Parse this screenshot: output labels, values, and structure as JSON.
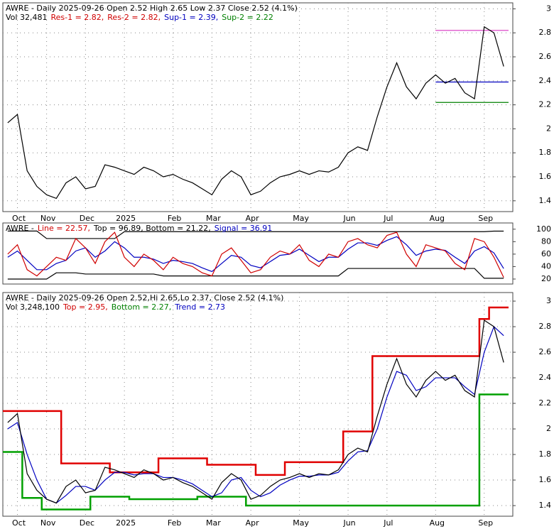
{
  "chart_data": [
    {
      "type": "line",
      "header": [
        [
          {
            "text": "AWRE - Daily 2025-09-26 Open 2.52  High 2.65  Low 2.37  Close 2.52 (4.1%)",
            "color": "#000000"
          }
        ],
        [
          {
            "text": "Vol 32,481",
            "color": "#000000"
          },
          {
            "text": "Res-1 = 2.82,",
            "color": "#d00000"
          },
          {
            "text": "Res-2 = 2.82,",
            "color": "#d00000"
          },
          {
            "text": "Sup-1 = 2.39,",
            "color": "#0000c0"
          },
          {
            "text": "Sup-2 = 2.22",
            "color": "#008000"
          }
        ]
      ],
      "categories": [
        null,
        "Oct",
        null,
        null,
        "Nov",
        null,
        null,
        null,
        "Dec",
        null,
        null,
        null,
        "2025",
        null,
        null,
        null,
        null,
        "Feb",
        null,
        null,
        null,
        "Mar",
        null,
        null,
        null,
        "Apr",
        null,
        null,
        null,
        null,
        "May",
        null,
        null,
        null,
        null,
        "Jun",
        null,
        null,
        null,
        "Jul",
        null,
        null,
        null,
        null,
        "Aug",
        null,
        null,
        null,
        null,
        "Sep",
        null,
        null
      ],
      "series": [
        {
          "color": "#000000",
          "values": [
            2.05,
            2.12,
            1.65,
            1.52,
            1.45,
            1.42,
            1.55,
            1.6,
            1.5,
            1.52,
            1.7,
            1.68,
            1.65,
            1.62,
            1.68,
            1.65,
            1.6,
            1.62,
            1.58,
            1.55,
            1.5,
            1.45,
            1.58,
            1.65,
            1.6,
            1.45,
            1.48,
            1.55,
            1.6,
            1.62,
            1.65,
            1.62,
            1.65,
            1.64,
            1.68,
            1.8,
            1.85,
            1.82,
            2.1,
            2.35,
            2.55,
            2.35,
            2.25,
            2.38,
            2.45,
            2.38,
            2.42,
            2.3,
            2.25,
            2.85,
            2.8,
            2.52
          ]
        }
      ],
      "levels": [
        {
          "value": 2.82,
          "color": "#d00000"
        },
        {
          "value": 2.82,
          "color": "#e060e0"
        },
        {
          "value": 2.39,
          "color": "#0000c0"
        },
        {
          "value": 2.22,
          "color": "#008000"
        }
      ],
      "ylim": [
        1.31,
        3.05
      ],
      "yticks": [
        1.4,
        1.6,
        1.8,
        2.0,
        2.2,
        2.4,
        2.6,
        2.8,
        3.0
      ],
      "grid": true
    },
    {
      "type": "line",
      "header": [
        [
          {
            "text": "AWRE -",
            "color": "#000000"
          },
          {
            "text": "Line = 22.57,",
            "color": "#d00000"
          },
          {
            "text": "Top = 96.89, Bottom = 21.22,",
            "color": "#000000"
          },
          {
            "text": "Signal = 36.91",
            "color": "#0000c0"
          }
        ]
      ],
      "series": [
        {
          "color": "#000000",
          "values": [
            97,
            97,
            97,
            97,
            85,
            85,
            85,
            85,
            85,
            85,
            85,
            85,
            96,
            96,
            96,
            96,
            96,
            96,
            96,
            96,
            96,
            96,
            96,
            96,
            96,
            96,
            96,
            96,
            96,
            96,
            96,
            96,
            96,
            96,
            96,
            96,
            96,
            96,
            96,
            96,
            96,
            96,
            96,
            96,
            96,
            96,
            96,
            96,
            96,
            96,
            96.89,
            96.89
          ]
        },
        {
          "color": "#000000",
          "values": [
            20,
            20,
            20,
            20,
            20,
            30,
            30,
            30,
            28,
            28,
            28,
            28,
            28,
            28,
            28,
            28,
            25,
            25,
            25,
            25,
            25,
            25,
            25,
            25,
            25,
            25,
            25,
            25,
            25,
            25,
            25,
            25,
            25,
            25,
            25,
            37,
            37,
            37,
            37,
            37,
            37,
            37,
            37,
            37,
            37,
            37,
            37,
            37,
            37,
            21.22,
            21.22,
            21.22
          ]
        },
        {
          "color": "#0000c0",
          "values": [
            55,
            65,
            50,
            35,
            35,
            45,
            50,
            65,
            70,
            55,
            65,
            80,
            70,
            55,
            55,
            52,
            45,
            50,
            48,
            45,
            38,
            32,
            45,
            58,
            55,
            42,
            38,
            48,
            58,
            60,
            68,
            58,
            48,
            55,
            55,
            68,
            78,
            78,
            74,
            82,
            88,
            75,
            58,
            65,
            68,
            66,
            55,
            45,
            65,
            72,
            62,
            36.91
          ]
        },
        {
          "color": "#d00000",
          "values": [
            60,
            75,
            35,
            25,
            40,
            55,
            50,
            85,
            70,
            45,
            80,
            95,
            55,
            40,
            60,
            50,
            35,
            55,
            45,
            40,
            30,
            25,
            60,
            70,
            50,
            30,
            35,
            55,
            65,
            60,
            75,
            50,
            40,
            60,
            55,
            80,
            85,
            75,
            70,
            90,
            95,
            60,
            40,
            75,
            70,
            65,
            45,
            35,
            85,
            80,
            55,
            22.57
          ]
        }
      ],
      "ylim": [
        12,
        110
      ],
      "yticks": [
        20,
        40,
        60,
        80,
        100
      ],
      "grid": false
    },
    {
      "type": "line",
      "header": [
        [
          {
            "text": "AWRE - Daily 2025-09-26 Open 2.52,Hi 2.65,Lo 2.37, Close 2.52 (4.1%)",
            "color": "#000000"
          }
        ],
        [
          {
            "text": "Vol 3,248,100",
            "color": "#000000"
          },
          {
            "text": "Top = 2.95,",
            "color": "#d00000"
          },
          {
            "text": "Bottom = 2.27,",
            "color": "#008000"
          },
          {
            "text": "Trend = 2.73",
            "color": "#0000c0"
          }
        ]
      ],
      "categories": [
        null,
        "Oct",
        null,
        null,
        "Nov",
        null,
        null,
        null,
        "Dec",
        null,
        null,
        null,
        "2025",
        null,
        null,
        null,
        null,
        "Feb",
        null,
        null,
        null,
        "Mar",
        null,
        null,
        null,
        "Apr",
        null,
        null,
        null,
        null,
        "May",
        null,
        null,
        null,
        null,
        "Jun",
        null,
        null,
        null,
        "Jul",
        null,
        null,
        null,
        null,
        "Aug",
        null,
        null,
        null,
        null,
        "Sep",
        null,
        null
      ],
      "series": [
        {
          "color": "#e00000",
          "step": true,
          "values": [
            2.14,
            2.14,
            2.14,
            2.14,
            2.14,
            2.14,
            1.73,
            1.73,
            1.73,
            1.73,
            1.73,
            1.66,
            1.66,
            1.66,
            1.66,
            1.66,
            1.77,
            1.77,
            1.77,
            1.77,
            1.77,
            1.72,
            1.72,
            1.72,
            1.72,
            1.72,
            1.64,
            1.64,
            1.64,
            1.74,
            1.74,
            1.74,
            1.74,
            1.74,
            1.74,
            1.98,
            1.98,
            1.98,
            2.57,
            2.57,
            2.57,
            2.57,
            2.57,
            2.57,
            2.57,
            2.57,
            2.57,
            2.57,
            2.57,
            2.86,
            2.95,
            2.95
          ]
        },
        {
          "color": "#00a000",
          "step": true,
          "values": [
            1.82,
            1.82,
            1.46,
            1.46,
            1.37,
            1.37,
            1.37,
            1.37,
            1.37,
            1.47,
            1.47,
            1.47,
            1.47,
            1.45,
            1.45,
            1.45,
            1.45,
            1.45,
            1.45,
            1.45,
            1.47,
            1.47,
            1.47,
            1.47,
            1.47,
            1.4,
            1.4,
            1.4,
            1.4,
            1.4,
            1.4,
            1.4,
            1.4,
            1.4,
            1.4,
            1.4,
            1.4,
            1.4,
            1.4,
            1.4,
            1.4,
            1.4,
            1.4,
            1.4,
            1.4,
            1.4,
            1.4,
            1.4,
            1.4,
            2.27,
            2.27,
            2.27
          ]
        },
        {
          "color": "#0000c0",
          "values": [
            2.0,
            2.05,
            1.8,
            1.6,
            1.45,
            1.42,
            1.48,
            1.55,
            1.55,
            1.52,
            1.6,
            1.66,
            1.66,
            1.64,
            1.65,
            1.65,
            1.62,
            1.62,
            1.6,
            1.57,
            1.52,
            1.47,
            1.5,
            1.6,
            1.62,
            1.52,
            1.47,
            1.5,
            1.56,
            1.6,
            1.63,
            1.63,
            1.64,
            1.64,
            1.66,
            1.75,
            1.82,
            1.83,
            2.0,
            2.25,
            2.45,
            2.42,
            2.3,
            2.33,
            2.4,
            2.4,
            2.4,
            2.33,
            2.27,
            2.6,
            2.8,
            2.73
          ]
        },
        {
          "color": "#000000",
          "values": [
            2.05,
            2.12,
            1.65,
            1.52,
            1.45,
            1.42,
            1.55,
            1.6,
            1.5,
            1.52,
            1.7,
            1.68,
            1.65,
            1.62,
            1.68,
            1.65,
            1.6,
            1.62,
            1.58,
            1.55,
            1.5,
            1.45,
            1.58,
            1.65,
            1.6,
            1.45,
            1.48,
            1.55,
            1.6,
            1.62,
            1.65,
            1.62,
            1.65,
            1.64,
            1.68,
            1.8,
            1.85,
            1.82,
            2.1,
            2.35,
            2.55,
            2.35,
            2.25,
            2.38,
            2.45,
            2.38,
            2.42,
            2.3,
            2.25,
            2.85,
            2.8,
            2.52
          ]
        }
      ],
      "ylim": [
        1.317,
        3.067
      ],
      "yticks": [
        1.4,
        1.6,
        1.8,
        2.0,
        2.2,
        2.4,
        2.6,
        2.8,
        3.0
      ],
      "grid": true
    }
  ]
}
